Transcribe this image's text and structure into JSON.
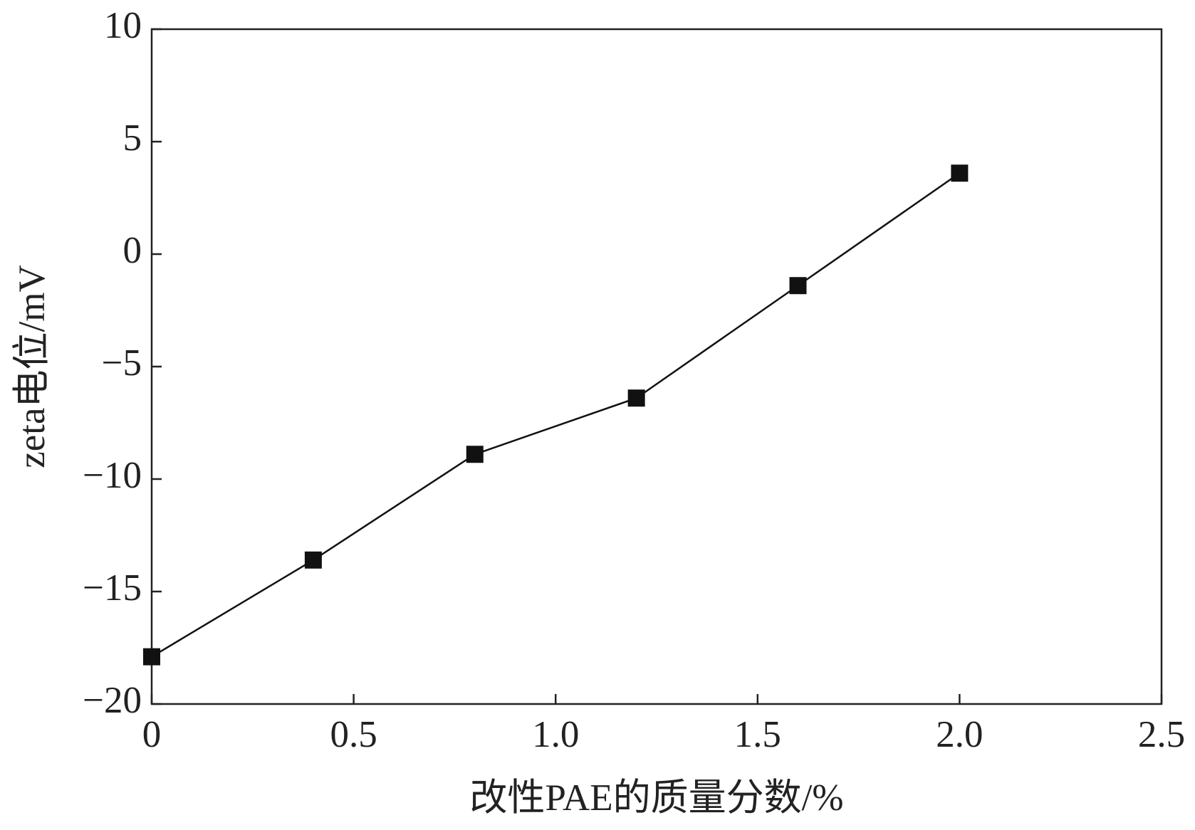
{
  "chart_data": {
    "type": "line",
    "x_label": "改性PAE的质量分数/%",
    "y_label": "zeta电位/mV",
    "x": [
      0,
      0.4,
      0.8,
      1.2,
      1.6,
      2.0
    ],
    "values": [
      -17.9,
      -13.6,
      -8.9,
      -6.4,
      -1.4,
      3.6
    ],
    "color": "#111111",
    "xlim": [
      0,
      2.5
    ],
    "xticks": [
      0,
      0.5,
      {
        "value": 1,
        "label": "1.0"
      },
      1.5,
      {
        "value": 2,
        "label": "2.0"
      },
      2.5
    ],
    "ylim": [
      -20,
      10
    ],
    "yticks": [
      {
        "value": -20,
        "label": "−20"
      },
      {
        "value": -15,
        "label": "−15"
      },
      {
        "value": -10,
        "label": "−10"
      },
      {
        "value": -5,
        "label": "−5"
      },
      0,
      5,
      10
    ],
    "grid": false
  }
}
